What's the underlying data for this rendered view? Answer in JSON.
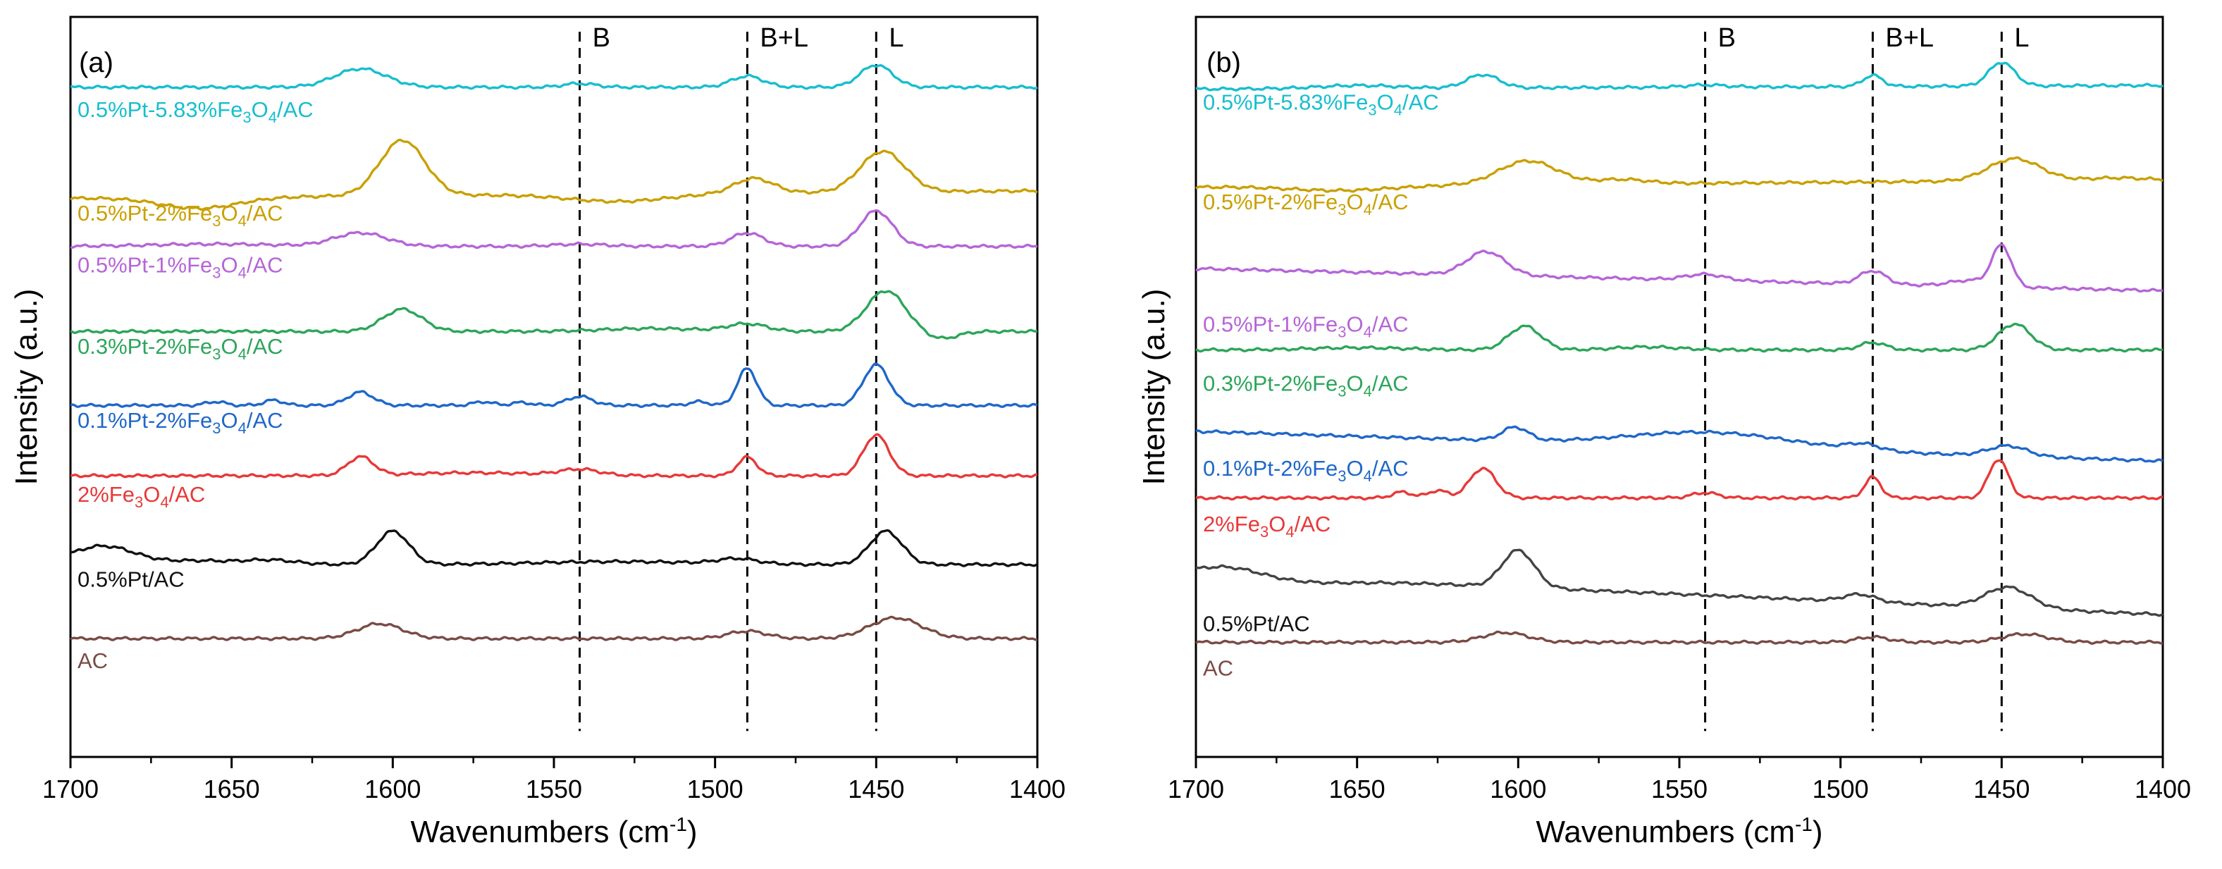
{
  "figure": {
    "panels": [
      {
        "panel_label": "(a)",
        "peak_labels": [
          "B",
          "B+L",
          "L"
        ],
        "legend_entries": [
          {
            "text": "0.5%Pt-5.83%Fe",
            "sub": "3",
            "mid": "O",
            "sub2": "4",
            "tail": "/AC",
            "color": "#17becf"
          },
          {
            "text": "0.5%Pt-2%Fe",
            "sub": "3",
            "mid": "O",
            "sub2": "4",
            "tail": "/AC",
            "color": "#c9a000"
          },
          {
            "text": "0.5%Pt-1%Fe",
            "sub": "3",
            "mid": "O",
            "sub2": "4",
            "tail": "/AC",
            "color": "#b565d8"
          },
          {
            "text": "0.3%Pt-2%Fe",
            "sub": "3",
            "mid": "O",
            "sub2": "4",
            "tail": "/AC",
            "color": "#2ca55a"
          },
          {
            "text": "0.1%Pt-2%Fe",
            "sub": "3",
            "mid": "O",
            "sub2": "4",
            "tail": "/AC",
            "color": "#1f67c9"
          },
          {
            "text": "2%Fe",
            "sub": "3",
            "mid": "O",
            "sub2": "4",
            "tail": "/AC",
            "color": "#e83838"
          },
          {
            "text": "0.5%Pt/AC",
            "sub": "",
            "mid": "",
            "sub2": "",
            "tail": "",
            "color": "#111111"
          },
          {
            "text": "AC",
            "sub": "",
            "mid": "",
            "sub2": "",
            "tail": "",
            "color": "#7a4a44"
          }
        ]
      },
      {
        "panel_label": "(b)",
        "peak_labels": [
          "B",
          "B+L",
          "L"
        ],
        "legend_entries": [
          {
            "text": "0.5%Pt-5.83%Fe",
            "sub": "3",
            "mid": "O",
            "sub2": "4",
            "tail": "/AC",
            "color": "#17becf"
          },
          {
            "text": "0.5%Pt-2%Fe",
            "sub": "3",
            "mid": "O",
            "sub2": "4",
            "tail": "/AC",
            "color": "#c9a000"
          },
          {
            "text": "0.5%Pt-1%Fe",
            "sub": "3",
            "mid": "O",
            "sub2": "4",
            "tail": "/AC",
            "color": "#b565d8"
          },
          {
            "text": "0.3%Pt-2%Fe",
            "sub": "3",
            "mid": "O",
            "sub2": "4",
            "tail": "/AC",
            "color": "#2ca55a"
          },
          {
            "text": "0.1%Pt-2%Fe",
            "sub": "3",
            "mid": "O",
            "sub2": "4",
            "tail": "/AC",
            "color": "#1f67c9"
          },
          {
            "text": "2%Fe",
            "sub": "3",
            "mid": "O",
            "sub2": "4",
            "tail": "/AC",
            "color": "#e83838"
          },
          {
            "text": "0.5%Pt/AC",
            "sub": "",
            "mid": "",
            "sub2": "",
            "tail": "",
            "color": "#111111"
          },
          {
            "text": "AC",
            "sub": "",
            "mid": "",
            "sub2": "",
            "tail": "",
            "color": "#7a4a44"
          }
        ]
      }
    ]
  },
  "chart_data": [
    {
      "type": "line",
      "title": "(a)",
      "xlabel": "Wavenumbers (cm-1)",
      "ylabel": "Intensity (a.u.)",
      "xlim": [
        1700,
        1400
      ],
      "ylim": [
        0,
        10
      ],
      "x_ticks": [
        1700,
        1650,
        1600,
        1550,
        1500,
        1450,
        1400
      ],
      "reference_lines": [
        {
          "x": 1542,
          "label": "B"
        },
        {
          "x": 1490,
          "label": "B+L"
        },
        {
          "x": 1450,
          "label": "L"
        }
      ],
      "series": [
        {
          "name": "0.5%Pt-5.83%Fe3O4/AC",
          "color": "#17becf",
          "baseline": 9.05,
          "peaks": [
            [
              1610,
              0.25,
              8
            ],
            [
              1542,
              0.05,
              5
            ],
            [
              1490,
              0.15,
              5
            ],
            [
              1450,
              0.3,
              5
            ]
          ],
          "tilt": 0.0
        },
        {
          "name": "0.5%Pt-2%Fe3O4/AC",
          "color": "#c9a000",
          "baseline": 7.6,
          "peaks": [
            [
              1597,
              0.75,
              7
            ],
            [
              1488,
              0.2,
              6
            ],
            [
              1448,
              0.55,
              7
            ],
            [
              1660,
              -0.15,
              12
            ],
            [
              1530,
              -0.1,
              15
            ]
          ],
          "tilt": -0.1
        },
        {
          "name": "0.5%Pt-1%Fe3O4/AC",
          "color": "#b565d8",
          "baseline": 6.9,
          "peaks": [
            [
              1610,
              0.18,
              8
            ],
            [
              1542,
              0.03,
              8
            ],
            [
              1490,
              0.18,
              5
            ],
            [
              1450,
              0.48,
              5
            ],
            [
              1655,
              0.03,
              20
            ]
          ],
          "tilt": 0.0
        },
        {
          "name": "0.3%Pt-2%Fe3O4/AC",
          "color": "#2ca55a",
          "baseline": 5.75,
          "peaks": [
            [
              1597,
              0.3,
              6
            ],
            [
              1490,
              0.1,
              6
            ],
            [
              1447,
              0.55,
              6
            ],
            [
              1430,
              -0.1,
              5
            ],
            [
              1520,
              0.04,
              15
            ]
          ],
          "tilt": 0.0
        },
        {
          "name": "0.1%Pt-2%Fe3O4/AC",
          "color": "#1f67c9",
          "baseline": 4.75,
          "peaks": [
            [
              1610,
              0.18,
              4
            ],
            [
              1542,
              0.12,
              4
            ],
            [
              1490,
              0.5,
              3
            ],
            [
              1450,
              0.55,
              4
            ],
            [
              1637,
              0.07,
              3
            ],
            [
              1655,
              0.05,
              3
            ],
            [
              1572,
              0.05,
              3
            ],
            [
              1560,
              0.04,
              3
            ],
            [
              1505,
              0.05,
              3
            ]
          ],
          "tilt": 0.0
        },
        {
          "name": "2%Fe3O4/AC",
          "color": "#e83838",
          "baseline": 3.8,
          "peaks": [
            [
              1610,
              0.25,
              4
            ],
            [
              1542,
              0.08,
              6
            ],
            [
              1490,
              0.25,
              3
            ],
            [
              1450,
              0.55,
              4
            ],
            [
              1575,
              0.04,
              20
            ]
          ],
          "tilt": 0.0
        },
        {
          "name": "0.5%Pt/AC",
          "color": "#111111",
          "baseline": 2.6,
          "peaks": [
            [
              1600,
              0.45,
              5
            ],
            [
              1447,
              0.45,
              5
            ],
            [
              1690,
              0.25,
              10
            ],
            [
              1660,
              0.05,
              10
            ],
            [
              1638,
              0.06,
              8
            ],
            [
              1493,
              0.07,
              6
            ],
            [
              1530,
              0.04,
              25
            ]
          ],
          "tilt": 0.0
        },
        {
          "name": "AC",
          "color": "#7a4a44",
          "baseline": 1.6,
          "peaks": [
            [
              1604,
              0.2,
              7
            ],
            [
              1490,
              0.1,
              6
            ],
            [
              1444,
              0.28,
              8
            ]
          ],
          "tilt": 0.0
        }
      ]
    },
    {
      "type": "line",
      "title": "(b)",
      "xlabel": "Wavenumbers (cm-1)",
      "ylabel": "Intensity (a.u.)",
      "xlim": [
        1700,
        1400
      ],
      "ylim": [
        0,
        10
      ],
      "x_ticks": [
        1700,
        1650,
        1600,
        1550,
        1500,
        1450,
        1400
      ],
      "reference_lines": [
        {
          "x": 1542,
          "label": "B"
        },
        {
          "x": 1490,
          "label": "B+L"
        },
        {
          "x": 1450,
          "label": "L"
        }
      ],
      "series": [
        {
          "name": "0.5%Pt-5.83%Fe3O4/AC",
          "color": "#17becf",
          "baseline": 9.05,
          "peaks": [
            [
              1611,
              0.18,
              5
            ],
            [
              1542,
              0.03,
              6
            ],
            [
              1490,
              0.15,
              3
            ],
            [
              1450,
              0.32,
              4
            ],
            [
              1650,
              0.04,
              12
            ]
          ],
          "tilt": -0.05
        },
        {
          "name": "0.5%Pt-2%Fe3O4/AC",
          "color": "#c9a000",
          "baseline": 7.75,
          "peaks": [
            [
              1597,
              0.32,
              9
            ],
            [
              1568,
              0.06,
              8
            ],
            [
              1446,
              0.3,
              8
            ],
            [
              1415,
              0.03,
              8
            ],
            [
              1655,
              -0.06,
              15
            ]
          ],
          "tilt": -0.1
        },
        {
          "name": "0.5%Pt-1%Fe3O4/AC",
          "color": "#b565d8",
          "baseline": 6.45,
          "peaks": [
            [
              1610,
              0.32,
              6
            ],
            [
              1542,
              0.08,
              6
            ],
            [
              1490,
              0.18,
              4
            ],
            [
              1450,
              0.55,
              3
            ],
            [
              1460,
              0.08,
              6
            ]
          ],
          "tilt": 0.3
        },
        {
          "name": "0.3%Pt-2%Fe3O4/AC",
          "color": "#2ca55a",
          "baseline": 5.5,
          "peaks": [
            [
              1598,
              0.32,
              5
            ],
            [
              1490,
              0.1,
              4
            ],
            [
              1446,
              0.35,
              5
            ],
            [
              1560,
              0.04,
              10
            ],
            [
              1650,
              0.03,
              15
            ]
          ],
          "tilt": 0.0
        },
        {
          "name": "0.1%Pt-2%Fe3O4/AC",
          "color": "#1f67c9",
          "baseline": 4.2,
          "peaks": [
            [
              1601,
              0.18,
              4
            ],
            [
              1540,
              0.2,
              25
            ],
            [
              1493,
              0.08,
              5
            ],
            [
              1448,
              0.14,
              6
            ]
          ],
          "tilt": 0.4
        },
        {
          "name": "2%Fe3O4/AC",
          "color": "#e83838",
          "baseline": 3.5,
          "peaks": [
            [
              1611,
              0.4,
              4
            ],
            [
              1625,
              0.1,
              3
            ],
            [
              1636,
              0.08,
              3
            ],
            [
              1542,
              0.07,
              4
            ],
            [
              1490,
              0.28,
              2.5
            ],
            [
              1451,
              0.52,
              3
            ]
          ],
          "tilt": 0.0
        },
        {
          "name": "0.5%Pt/AC",
          "color": "#444444",
          "baseline": 2.2,
          "peaks": [
            [
              1600,
              0.5,
              5
            ],
            [
              1494,
              0.1,
              5
            ],
            [
              1448,
              0.28,
              7
            ],
            [
              1690,
              0.12,
              10
            ],
            [
              1665,
              -0.05,
              15
            ]
          ],
          "tilt": 0.55
        },
        {
          "name": "AC",
          "color": "#7a4a44",
          "baseline": 1.55,
          "peaks": [
            [
              1604,
              0.13,
              7
            ],
            [
              1490,
              0.07,
              5
            ],
            [
              1443,
              0.11,
              7
            ]
          ],
          "tilt": 0.0
        }
      ]
    }
  ]
}
